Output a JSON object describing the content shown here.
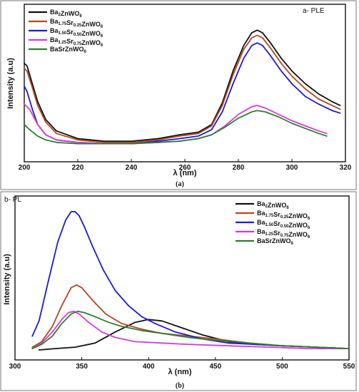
{
  "chart_data": [
    {
      "type": "line",
      "panel_label": "a- PLE",
      "caption": "(a)",
      "xlabel": "λ (nm)",
      "ylabel": "Intensity (a.u)",
      "xlim": [
        200,
        320
      ],
      "ylim": [
        0,
        1
      ],
      "x_ticks": [
        200,
        220,
        240,
        260,
        280,
        300,
        320
      ],
      "grid": false,
      "legend": "top-left",
      "series": [
        {
          "name": "Ba2ZnWO6",
          "color": "#111111",
          "x": [
            200,
            201,
            203,
            205,
            208,
            212,
            220,
            230,
            240,
            250,
            258,
            265,
            270,
            274,
            278,
            282,
            285,
            287,
            289,
            292,
            296,
            300,
            305,
            310,
            315,
            318
          ],
          "y": [
            0.66,
            0.64,
            0.5,
            0.36,
            0.22,
            0.13,
            0.07,
            0.05,
            0.05,
            0.07,
            0.1,
            0.12,
            0.18,
            0.35,
            0.6,
            0.8,
            0.9,
            0.92,
            0.9,
            0.82,
            0.7,
            0.6,
            0.5,
            0.42,
            0.36,
            0.33
          ]
        },
        {
          "name": "Ba1.75Sr0.25ZnWO6",
          "color": "#b3471f",
          "x": [
            200,
            201,
            203,
            205,
            208,
            212,
            220,
            230,
            240,
            250,
            258,
            265,
            270,
            274,
            278,
            282,
            285,
            287,
            289,
            292,
            296,
            300,
            305,
            310,
            315,
            318
          ],
          "y": [
            0.62,
            0.6,
            0.47,
            0.33,
            0.2,
            0.11,
            0.06,
            0.04,
            0.04,
            0.06,
            0.09,
            0.11,
            0.17,
            0.33,
            0.57,
            0.77,
            0.86,
            0.88,
            0.86,
            0.78,
            0.66,
            0.56,
            0.46,
            0.38,
            0.33,
            0.3
          ]
        },
        {
          "name": "Ba1.50Sr0.50ZnWO6",
          "color": "#1a1ad6",
          "x": [
            200,
            201,
            203,
            205,
            208,
            212,
            220,
            230,
            240,
            250,
            258,
            265,
            270,
            274,
            278,
            282,
            285,
            287,
            289,
            292,
            296,
            300,
            305,
            310,
            315,
            318
          ],
          "y": [
            0.48,
            0.44,
            0.3,
            0.18,
            0.1,
            0.06,
            0.04,
            0.03,
            0.03,
            0.05,
            0.07,
            0.09,
            0.14,
            0.28,
            0.5,
            0.7,
            0.8,
            0.82,
            0.8,
            0.72,
            0.6,
            0.5,
            0.4,
            0.34,
            0.29,
            0.27
          ]
        },
        {
          "name": "Ba1.25Sr0.75ZnWO6",
          "color": "#d63cd6",
          "x": [
            200,
            202,
            205,
            208,
            212,
            220,
            230,
            240,
            250,
            258,
            265,
            270,
            275,
            280,
            285,
            287,
            290,
            295,
            300,
            305,
            310,
            313
          ],
          "y": [
            0.34,
            0.3,
            0.18,
            0.1,
            0.06,
            0.04,
            0.03,
            0.03,
            0.04,
            0.05,
            0.07,
            0.1,
            0.17,
            0.26,
            0.32,
            0.33,
            0.31,
            0.26,
            0.21,
            0.17,
            0.13,
            0.11
          ]
        },
        {
          "name": "BaSrZnWO6",
          "color": "#2e7d32",
          "x": [
            200,
            202,
            205,
            208,
            212,
            220,
            230,
            240,
            250,
            258,
            265,
            270,
            275,
            280,
            285,
            287,
            290,
            295,
            300,
            305,
            310,
            313
          ],
          "y": [
            0.18,
            0.14,
            0.09,
            0.06,
            0.04,
            0.03,
            0.03,
            0.03,
            0.04,
            0.05,
            0.07,
            0.1,
            0.16,
            0.23,
            0.28,
            0.29,
            0.28,
            0.24,
            0.19,
            0.15,
            0.11,
            0.09
          ]
        }
      ]
    },
    {
      "type": "line",
      "panel_label": "b- PL",
      "caption": "(b)",
      "xlabel": "λ (nm)",
      "ylabel": "Intensity (a.u)",
      "xlim": [
        300,
        550
      ],
      "ylim": [
        0,
        1
      ],
      "x_ticks": [
        300,
        350,
        400,
        450,
        500,
        550
      ],
      "grid": false,
      "legend": "top-right",
      "series": [
        {
          "name": "Ba2ZnWO6",
          "color": "#111111",
          "x": [
            318,
            330,
            345,
            360,
            375,
            390,
            400,
            410,
            425,
            440,
            460,
            480,
            500,
            525,
            550
          ],
          "y": [
            0.0,
            0.01,
            0.02,
            0.05,
            0.13,
            0.2,
            0.22,
            0.21,
            0.16,
            0.11,
            0.06,
            0.04,
            0.03,
            0.02,
            0.01
          ]
        },
        {
          "name": "Ba1.75Sr0.25ZnWO6",
          "color": "#b3471f",
          "x": [
            313,
            320,
            328,
            335,
            342,
            346,
            350,
            358,
            368,
            380,
            395,
            410,
            430,
            450,
            475,
            500,
            525,
            550
          ],
          "y": [
            0.02,
            0.06,
            0.17,
            0.32,
            0.45,
            0.47,
            0.45,
            0.36,
            0.26,
            0.19,
            0.15,
            0.12,
            0.1,
            0.08,
            0.05,
            0.03,
            0.02,
            0.01
          ]
        },
        {
          "name": "Ba1.50Sr0.50ZnWO6",
          "color": "#1a1ad6",
          "x": [
            313,
            318,
            325,
            332,
            338,
            342,
            345,
            348,
            352,
            358,
            366,
            375,
            385,
            395,
            405,
            420,
            440,
            460,
            480,
            500,
            525,
            550
          ],
          "y": [
            0.1,
            0.21,
            0.5,
            0.78,
            0.94,
            1.0,
            1.0,
            0.97,
            0.89,
            0.75,
            0.58,
            0.43,
            0.32,
            0.24,
            0.19,
            0.13,
            0.08,
            0.05,
            0.04,
            0.03,
            0.02,
            0.01
          ]
        },
        {
          "name": "Ba1.25Sr0.75ZnWO6",
          "color": "#d63cd6",
          "x": [
            313,
            320,
            328,
            335,
            340,
            344,
            348,
            355,
            365,
            375,
            390,
            410,
            430,
            460,
            490,
            520,
            550
          ],
          "y": [
            0.01,
            0.05,
            0.13,
            0.22,
            0.27,
            0.28,
            0.26,
            0.2,
            0.13,
            0.09,
            0.06,
            0.05,
            0.04,
            0.03,
            0.02,
            0.01,
            0.01
          ]
        },
        {
          "name": "BaSrZnWO6",
          "color": "#2e7d32",
          "x": [
            313,
            320,
            328,
            335,
            342,
            347,
            352,
            360,
            370,
            380,
            395,
            410,
            430,
            450,
            475,
            500,
            525,
            550
          ],
          "y": [
            0.01,
            0.04,
            0.1,
            0.19,
            0.26,
            0.28,
            0.27,
            0.24,
            0.2,
            0.17,
            0.14,
            0.12,
            0.09,
            0.07,
            0.05,
            0.03,
            0.02,
            0.01
          ]
        }
      ]
    }
  ]
}
